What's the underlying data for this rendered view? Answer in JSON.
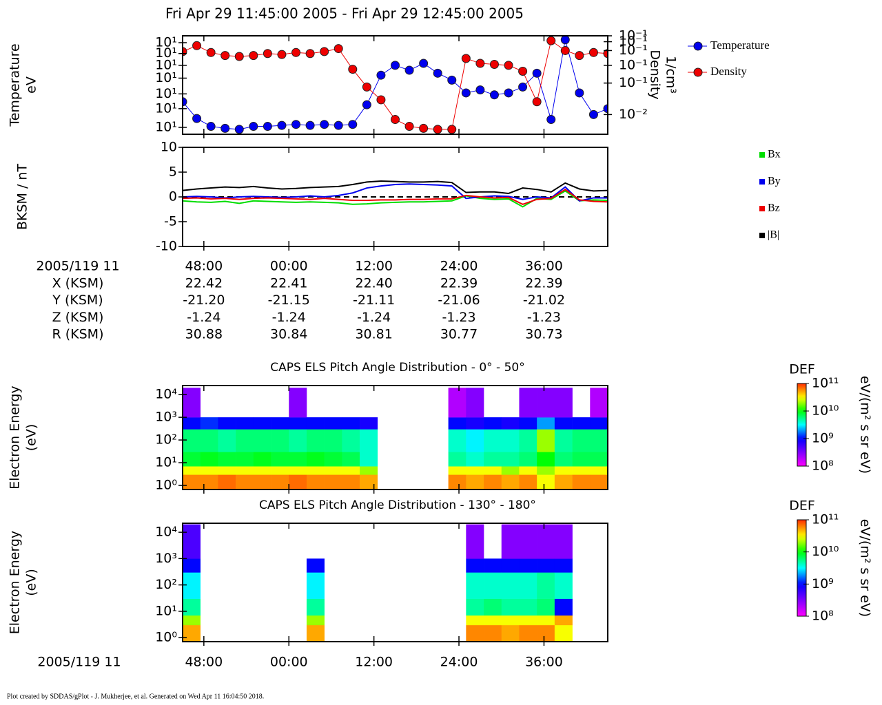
{
  "title": "Fri Apr 29 11:45:00 2005 - Fri Apr 29 12:45:00 2005",
  "footer": "Plot created by SDDAS/gPlot - J. Mukherjee, et al.  Generated on Wed Apr 11 16:04:50 2018.",
  "ephemeris": {
    "header": "2005/119 11",
    "rows": [
      {
        "label": "X (KSM)",
        "values": [
          "22.42",
          "22.41",
          "22.40",
          "22.39",
          "22.39"
        ]
      },
      {
        "label": "Y (KSM)",
        "values": [
          "-21.20",
          "-21.15",
          "-21.11",
          "-21.06",
          "-21.02"
        ]
      },
      {
        "label": "Z (KSM)",
        "values": [
          "-1.24",
          "-1.24",
          "-1.24",
          "-1.23",
          "-1.23"
        ]
      },
      {
        "label": "R (KSM)",
        "values": [
          "30.88",
          "30.84",
          "30.81",
          "30.77",
          "30.73"
        ]
      }
    ]
  },
  "chart_data": [
    {
      "type": "line",
      "ylabel": [
        "Temperature",
        "eV"
      ],
      "y2label": [
        "Density",
        "1/cm³"
      ],
      "xlim": [
        45,
        105
      ],
      "xticks": [
        48,
        60,
        72,
        84,
        96
      ],
      "ylim": [
        0,
        100
      ],
      "yticks": [
        {
          "value": 7,
          "label": "10¹"
        },
        {
          "value": 26,
          "label": "10¹"
        },
        {
          "value": 41,
          "label": "10¹"
        },
        {
          "value": 57,
          "label": "10¹"
        },
        {
          "value": 70,
          "label": "10¹"
        },
        {
          "value": 82,
          "label": "10¹"
        },
        {
          "value": 93,
          "label": "10¹"
        }
      ],
      "y2lim": [
        0,
        100
      ],
      "y2ticks": [
        {
          "value": 100,
          "label": "10⁻¹"
        },
        {
          "value": 94,
          "label": "10⁻¹"
        },
        {
          "value": 85,
          "label": "10⁻¹"
        },
        {
          "value": 70,
          "label": "10⁻¹"
        },
        {
          "value": 52,
          "label": "10⁻¹"
        },
        {
          "value": 20,
          "label": "10⁻²"
        }
      ],
      "x": [
        45,
        47,
        49,
        51,
        53,
        55,
        57,
        59,
        61,
        63,
        65,
        67,
        69,
        71,
        73,
        75,
        77,
        79,
        81,
        83,
        85,
        87,
        89,
        91,
        93,
        95,
        97,
        99,
        101,
        103,
        105
      ],
      "series": [
        {
          "name": "Temperature",
          "color": "#0000ee",
          "marker": true,
          "values": [
            33,
            16,
            8,
            6,
            5,
            8,
            8,
            9,
            10,
            9,
            10,
            9,
            10,
            30,
            60,
            70,
            65,
            72,
            62,
            55,
            42,
            45,
            40,
            42,
            48,
            62,
            15,
            96,
            42,
            20,
            26
          ]
        },
        {
          "name": "Density",
          "color": "#ee0000",
          "marker": true,
          "axis": "y2",
          "values": [
            84,
            90,
            83,
            80,
            79,
            80,
            82,
            81,
            83,
            82,
            84,
            87,
            66,
            48,
            35,
            15,
            8,
            6,
            5,
            5,
            77,
            72,
            71,
            70,
            64,
            33,
            95,
            85,
            80,
            83,
            82
          ]
        }
      ]
    },
    {
      "type": "line",
      "ylabel": [
        "BKSM / nT"
      ],
      "zero_line": true,
      "xlim": [
        45,
        105
      ],
      "xticks": [
        {
          "value": 48,
          "label": "48:00"
        },
        {
          "value": 60,
          "label": "00:00"
        },
        {
          "value": 72,
          "label": "12:00"
        },
        {
          "value": 84,
          "label": "24:00"
        },
        {
          "value": 96,
          "label": "36:00"
        }
      ],
      "ylim": [
        -10,
        10
      ],
      "yticks": [
        -10,
        -5,
        0,
        5,
        10
      ],
      "x": [
        45,
        47,
        49,
        51,
        53,
        55,
        57,
        59,
        61,
        63,
        65,
        67,
        69,
        71,
        73,
        75,
        77,
        79,
        81,
        83,
        85,
        87,
        89,
        91,
        93,
        95,
        97,
        99,
        101,
        103,
        105
      ],
      "series": [
        {
          "name": "Bx",
          "color": "#00dd00",
          "values": [
            -0.8,
            -1.0,
            -1.1,
            -0.9,
            -1.3,
            -0.8,
            -0.9,
            -1.0,
            -1.1,
            -1.0,
            -1.1,
            -1.2,
            -1.5,
            -1.4,
            -1.2,
            -1.1,
            -1.0,
            -1.0,
            -0.9,
            -0.8,
            0.2,
            -0.3,
            -0.5,
            -0.4,
            -2.0,
            -0.3,
            -0.5,
            1.2,
            -0.8,
            -0.6,
            -0.7
          ]
        },
        {
          "name": "By",
          "color": "#0000ee",
          "values": [
            0,
            0.1,
            0,
            -0.2,
            0,
            0.1,
            0,
            -0.1,
            0,
            0.2,
            0,
            0.3,
            0.8,
            1.8,
            2.2,
            2.5,
            2.6,
            2.5,
            2.4,
            2.2,
            -0.3,
            0,
            0.2,
            0.1,
            -0.5,
            0,
            -0.2,
            2.0,
            -0.8,
            -0.2,
            -0.2
          ]
        },
        {
          "name": "Bz",
          "color": "#ee0000",
          "values": [
            -0.3,
            -0.2,
            -0.4,
            -0.3,
            -0.5,
            -0.3,
            -0.2,
            -0.3,
            -0.4,
            -0.5,
            -0.3,
            -0.5,
            -0.7,
            -0.7,
            -0.6,
            -0.6,
            -0.5,
            -0.5,
            -0.4,
            -0.4,
            0.3,
            0,
            -0.2,
            -0.1,
            -1.5,
            -0.5,
            -0.3,
            1.5,
            -0.6,
            -0.9,
            -1.0
          ]
        },
        {
          "name": "|B|",
          "color": "#000000",
          "values": [
            1.3,
            1.6,
            1.8,
            2.0,
            1.9,
            2.1,
            1.8,
            1.6,
            1.7,
            1.9,
            2.0,
            2.1,
            2.5,
            3.0,
            3.2,
            3.1,
            3.0,
            3.0,
            3.1,
            2.9,
            0.9,
            1.0,
            1.0,
            0.7,
            1.8,
            1.5,
            1.0,
            2.8,
            1.6,
            1.2,
            1.3
          ]
        }
      ]
    },
    {
      "type": "heatmap",
      "title": "CAPS ELS Pitch Angle Distribution - 0° - 50°",
      "ylabel": [
        "Electron Energy",
        "(eV)"
      ],
      "ylog": true,
      "clabel": "DEF",
      "cunits": "eV/(m² s sr eV)",
      "clim": [
        100000000.0,
        100000000000.0
      ],
      "cticks": [
        {
          "value": 100000000.0,
          "label": "10⁸"
        },
        {
          "value": 1000000000.0,
          "label": "10⁹"
        },
        {
          "value": 10000000000.0,
          "label": "10¹⁰"
        },
        {
          "value": 100000000000.0,
          "label": "10¹¹"
        }
      ],
      "xlim": [
        45,
        105
      ],
      "xticks": [
        48,
        60,
        72,
        84,
        96
      ],
      "ylim": [
        0.66,
        25000
      ],
      "yticks": [
        {
          "value": 1,
          "label": "10⁰"
        },
        {
          "value": 10,
          "label": "10¹"
        },
        {
          "value": 100,
          "label": "10²"
        },
        {
          "value": 1000,
          "label": "10³"
        },
        {
          "value": 10000,
          "label": "10⁴"
        }
      ],
      "xbins": [
        45,
        47.5,
        50,
        52.5,
        55,
        57.5,
        60,
        62.5,
        65,
        67.5,
        70,
        72.5,
        75,
        77.5,
        80,
        82.5,
        85,
        87.5,
        90,
        92.5,
        95,
        97.5,
        100,
        102.5,
        105
      ],
      "ybins": [
        0.7,
        3,
        7,
        30,
        300,
        1000,
        20000
      ],
      "values": [
        [
          60000000000.0,
          30000000000.0,
          8000000000.0,
          6000000000.0,
          1000000000.0,
          300000000.0
        ],
        [
          60000000000.0,
          30000000000.0,
          9000000000.0,
          6000000000.0,
          1200000000.0,
          null
        ],
        [
          70000000000.0,
          30000000000.0,
          8000000000.0,
          5000000000.0,
          1000000000.0,
          null
        ],
        [
          60000000000.0,
          30000000000.0,
          8000000000.0,
          6000000000.0,
          1000000000.0,
          null
        ],
        [
          60000000000.0,
          30000000000.0,
          9000000000.0,
          6000000000.0,
          1000000000.0,
          null
        ],
        [
          60000000000.0,
          30000000000.0,
          8000000000.0,
          6000000000.0,
          1000000000.0,
          null
        ],
        [
          70000000000.0,
          30000000000.0,
          8000000000.0,
          5000000000.0,
          1000000000.0,
          300000000.0
        ],
        [
          60000000000.0,
          30000000000.0,
          9000000000.0,
          6000000000.0,
          1000000000.0,
          null
        ],
        [
          60000000000.0,
          30000000000.0,
          8000000000.0,
          6000000000.0,
          1000000000.0,
          null
        ],
        [
          60000000000.0,
          30000000000.0,
          7000000000.0,
          5000000000.0,
          1000000000.0,
          null
        ],
        [
          50000000000.0,
          20000000000.0,
          4000000000.0,
          4000000000.0,
          800000000.0,
          null
        ],
        [
          null,
          null,
          null,
          null,
          null,
          null
        ],
        [
          null,
          null,
          null,
          null,
          null,
          null
        ],
        [
          null,
          null,
          null,
          null,
          null,
          null
        ],
        [
          null,
          null,
          null,
          null,
          null,
          null
        ],
        [
          60000000000.0,
          30000000000.0,
          5000000000.0,
          4000000000.0,
          1000000000.0,
          200000000.0
        ],
        [
          50000000000.0,
          30000000000.0,
          4000000000.0,
          3000000000.0,
          800000000.0,
          300000000.0
        ],
        [
          60000000000.0,
          30000000000.0,
          5000000000.0,
          4000000000.0,
          1000000000.0,
          null
        ],
        [
          50000000000.0,
          20000000000.0,
          5000000000.0,
          4000000000.0,
          800000000.0,
          null
        ],
        [
          60000000000.0,
          30000000000.0,
          6000000000.0,
          5000000000.0,
          1000000000.0,
          300000000.0
        ],
        [
          30000000000.0,
          20000000000.0,
          10000000000.0,
          20000000000.0,
          2000000000.0,
          300000000.0
        ],
        [
          50000000000.0,
          30000000000.0,
          6000000000.0,
          5000000000.0,
          1000000000.0,
          300000000.0
        ],
        [
          60000000000.0,
          30000000000.0,
          7000000000.0,
          6000000000.0,
          1000000000.0,
          null
        ],
        [
          60000000000.0,
          30000000000.0,
          7000000000.0,
          6000000000.0,
          1000000000.0,
          200000000.0
        ]
      ]
    },
    {
      "type": "heatmap",
      "title": "CAPS ELS Pitch Angle Distribution - 130° - 180°",
      "ylabel": [
        "Electron Energy",
        "(eV)"
      ],
      "ylog": true,
      "xlabel": "2005/119 11",
      "clabel": "DEF",
      "cunits": "eV/(m² s sr eV)",
      "clim": [
        100000000.0,
        100000000000.0
      ],
      "cticks": [
        {
          "value": 100000000.0,
          "label": "10⁸"
        },
        {
          "value": 1000000000.0,
          "label": "10⁹"
        },
        {
          "value": 10000000000.0,
          "label": "10¹⁰"
        },
        {
          "value": 100000000000.0,
          "label": "10¹¹"
        }
      ],
      "xlim": [
        45,
        105
      ],
      "xticks": [
        {
          "value": 48,
          "label": "48:00"
        },
        {
          "value": 60,
          "label": "00:00"
        },
        {
          "value": 72,
          "label": "12:00"
        },
        {
          "value": 84,
          "label": "24:00"
        },
        {
          "value": 96,
          "label": "36:00"
        }
      ],
      "ylim": [
        0.7,
        22000
      ],
      "yticks": [
        {
          "value": 1,
          "label": "10⁰"
        },
        {
          "value": 10,
          "label": "10¹"
        },
        {
          "value": 100,
          "label": "10²"
        },
        {
          "value": 1000,
          "label": "10³"
        },
        {
          "value": 10000,
          "label": "10⁴"
        }
      ],
      "xbins": [
        45,
        47.5,
        50,
        52.5,
        55,
        57.5,
        60,
        62.5,
        65,
        67.5,
        70,
        72.5,
        75,
        77.5,
        80,
        82.5,
        85,
        87.5,
        90,
        92.5,
        95,
        97.5,
        100,
        102.5,
        105
      ],
      "ybins": [
        0.7,
        3,
        7,
        30,
        300,
        1000,
        20000
      ],
      "values": [
        [
          50000000000.0,
          20000000000.0,
          5000000000.0,
          3000000000.0,
          1000000000.0,
          500000000.0
        ],
        [
          null,
          null,
          null,
          null,
          null,
          null
        ],
        [
          null,
          null,
          null,
          null,
          null,
          null
        ],
        [
          null,
          null,
          null,
          null,
          null,
          null
        ],
        [
          null,
          null,
          null,
          null,
          null,
          null
        ],
        [
          null,
          null,
          null,
          null,
          null,
          null
        ],
        [
          null,
          null,
          null,
          null,
          null,
          null
        ],
        [
          50000000000.0,
          20000000000.0,
          5000000000.0,
          3000000000.0,
          1000000000.0,
          null
        ],
        [
          null,
          null,
          null,
          null,
          null,
          null
        ],
        [
          null,
          null,
          null,
          null,
          null,
          null
        ],
        [
          null,
          null,
          null,
          null,
          null,
          null
        ],
        [
          null,
          null,
          null,
          null,
          null,
          null
        ],
        [
          null,
          null,
          null,
          null,
          null,
          null
        ],
        [
          null,
          null,
          null,
          null,
          null,
          null
        ],
        [
          null,
          null,
          null,
          null,
          null,
          null
        ],
        [
          null,
          null,
          null,
          null,
          null,
          null
        ],
        [
          60000000000.0,
          30000000000.0,
          5000000000.0,
          4000000000.0,
          1000000000.0,
          300000000.0
        ],
        [
          60000000000.0,
          30000000000.0,
          6000000000.0,
          4000000000.0,
          1000000000.0,
          null
        ],
        [
          50000000000.0,
          30000000000.0,
          5000000000.0,
          4000000000.0,
          1000000000.0,
          300000000.0
        ],
        [
          60000000000.0,
          30000000000.0,
          5000000000.0,
          4000000000.0,
          1000000000.0,
          300000000.0
        ],
        [
          60000000000.0,
          30000000000.0,
          6000000000.0,
          5000000000.0,
          1000000000.0,
          300000000.0
        ],
        [
          30000000000.0,
          50000000000.0,
          1000000000.0,
          4000000000.0,
          1000000000.0,
          300000000.0
        ],
        [
          null,
          null,
          null,
          null,
          null,
          null
        ],
        [
          null,
          null,
          null,
          null,
          null,
          null
        ]
      ]
    }
  ]
}
